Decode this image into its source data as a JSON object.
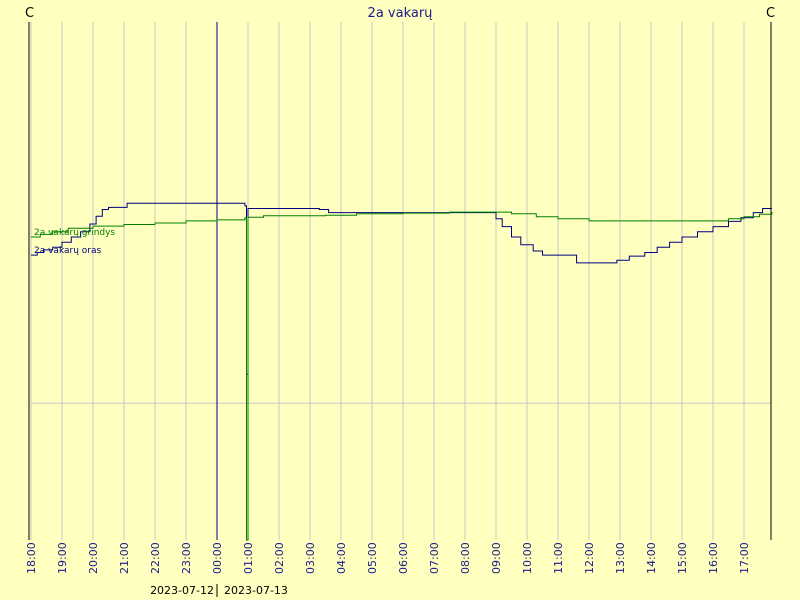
{
  "page": {
    "title": "2a vakarų",
    "left_unit": "C",
    "right_unit": "C"
  },
  "chart_data": {
    "type": "line",
    "title": "2a vakarų",
    "xlabel": "",
    "ylabel": "C",
    "x_tick_labels": [
      "18:00",
      "19:00",
      "20:00",
      "21:00",
      "22:00",
      "23:00",
      "00:00",
      "01:00",
      "02:00",
      "03:00",
      "04:00",
      "05:00",
      "06:00",
      "07:00",
      "08:00",
      "09:00",
      "10:00",
      "11:00",
      "12:00",
      "13:00",
      "14:00",
      "15:00",
      "16:00",
      "17:00"
    ],
    "x_range_hours": [
      0,
      23.9
    ],
    "y_range": [
      0,
      100
    ],
    "y_baseline": 26.4,
    "y_baseline_note": "horizontal reference line",
    "day_divider_hour": 6,
    "dates": [
      "2023-07-12",
      "2023-07-13"
    ],
    "grid": true,
    "legend": "inline labels at left edge",
    "series": [
      {
        "name": "2a vakarų oras",
        "color": "#000080",
        "points": [
          [
            0.0,
            55.0
          ],
          [
            0.2,
            55.5
          ],
          [
            0.4,
            56.0
          ],
          [
            0.7,
            56.5
          ],
          [
            1.0,
            57.5
          ],
          [
            1.3,
            58.5
          ],
          [
            1.6,
            59.5
          ],
          [
            1.9,
            61.0
          ],
          [
            2.1,
            62.5
          ],
          [
            2.3,
            63.8
          ],
          [
            2.5,
            64.2
          ],
          [
            3.0,
            64.2
          ],
          [
            3.1,
            65.0
          ],
          [
            4.0,
            65.0
          ],
          [
            5.0,
            65.0
          ],
          [
            6.0,
            65.0
          ],
          [
            6.6,
            65.0
          ],
          [
            6.9,
            64.5
          ],
          [
            6.95,
            32.0
          ],
          [
            7.0,
            64.0
          ],
          [
            8.0,
            64.0
          ],
          [
            9.0,
            64.0
          ],
          [
            9.3,
            63.8
          ],
          [
            9.6,
            63.2
          ],
          [
            10.5,
            63.2
          ],
          [
            11.5,
            63.2
          ],
          [
            12.5,
            63.2
          ],
          [
            13.5,
            63.2
          ],
          [
            14.8,
            63.2
          ],
          [
            15.0,
            62.0
          ],
          [
            15.2,
            60.5
          ],
          [
            15.5,
            58.5
          ],
          [
            15.8,
            57.0
          ],
          [
            16.2,
            55.8
          ],
          [
            16.5,
            55.0
          ],
          [
            17.0,
            55.0
          ],
          [
            17.6,
            53.5
          ],
          [
            18.0,
            53.5
          ],
          [
            18.4,
            53.5
          ],
          [
            18.9,
            54.0
          ],
          [
            19.3,
            54.8
          ],
          [
            19.8,
            55.5
          ],
          [
            20.2,
            56.5
          ],
          [
            20.6,
            57.5
          ],
          [
            21.0,
            58.5
          ],
          [
            21.5,
            59.5
          ],
          [
            22.0,
            60.5
          ],
          [
            22.5,
            61.5
          ],
          [
            22.9,
            62.2
          ],
          [
            23.3,
            63.2
          ],
          [
            23.6,
            64.0
          ],
          [
            23.9,
            64.0
          ]
        ]
      },
      {
        "name": "2a vakarų grindys",
        "color": "#008000",
        "points": [
          [
            0.0,
            58.5
          ],
          [
            0.3,
            59.0
          ],
          [
            0.7,
            59.5
          ],
          [
            1.2,
            60.2
          ],
          [
            2.0,
            60.6
          ],
          [
            3.0,
            60.9
          ],
          [
            4.0,
            61.2
          ],
          [
            5.0,
            61.6
          ],
          [
            6.0,
            61.8
          ],
          [
            6.9,
            62.2
          ],
          [
            6.95,
            0.0
          ],
          [
            7.0,
            62.3
          ],
          [
            7.5,
            62.6
          ],
          [
            8.5,
            62.6
          ],
          [
            9.5,
            62.7
          ],
          [
            10.5,
            63.0
          ],
          [
            12.0,
            63.1
          ],
          [
            13.5,
            63.3
          ],
          [
            14.8,
            63.3
          ],
          [
            15.5,
            63.0
          ],
          [
            16.3,
            62.4
          ],
          [
            17.0,
            62.0
          ],
          [
            18.0,
            61.6
          ],
          [
            19.0,
            61.6
          ],
          [
            20.0,
            61.6
          ],
          [
            21.0,
            61.6
          ],
          [
            22.0,
            61.6
          ],
          [
            22.5,
            62.0
          ],
          [
            23.0,
            62.4
          ],
          [
            23.5,
            62.9
          ],
          [
            23.9,
            63.3
          ]
        ]
      }
    ]
  }
}
